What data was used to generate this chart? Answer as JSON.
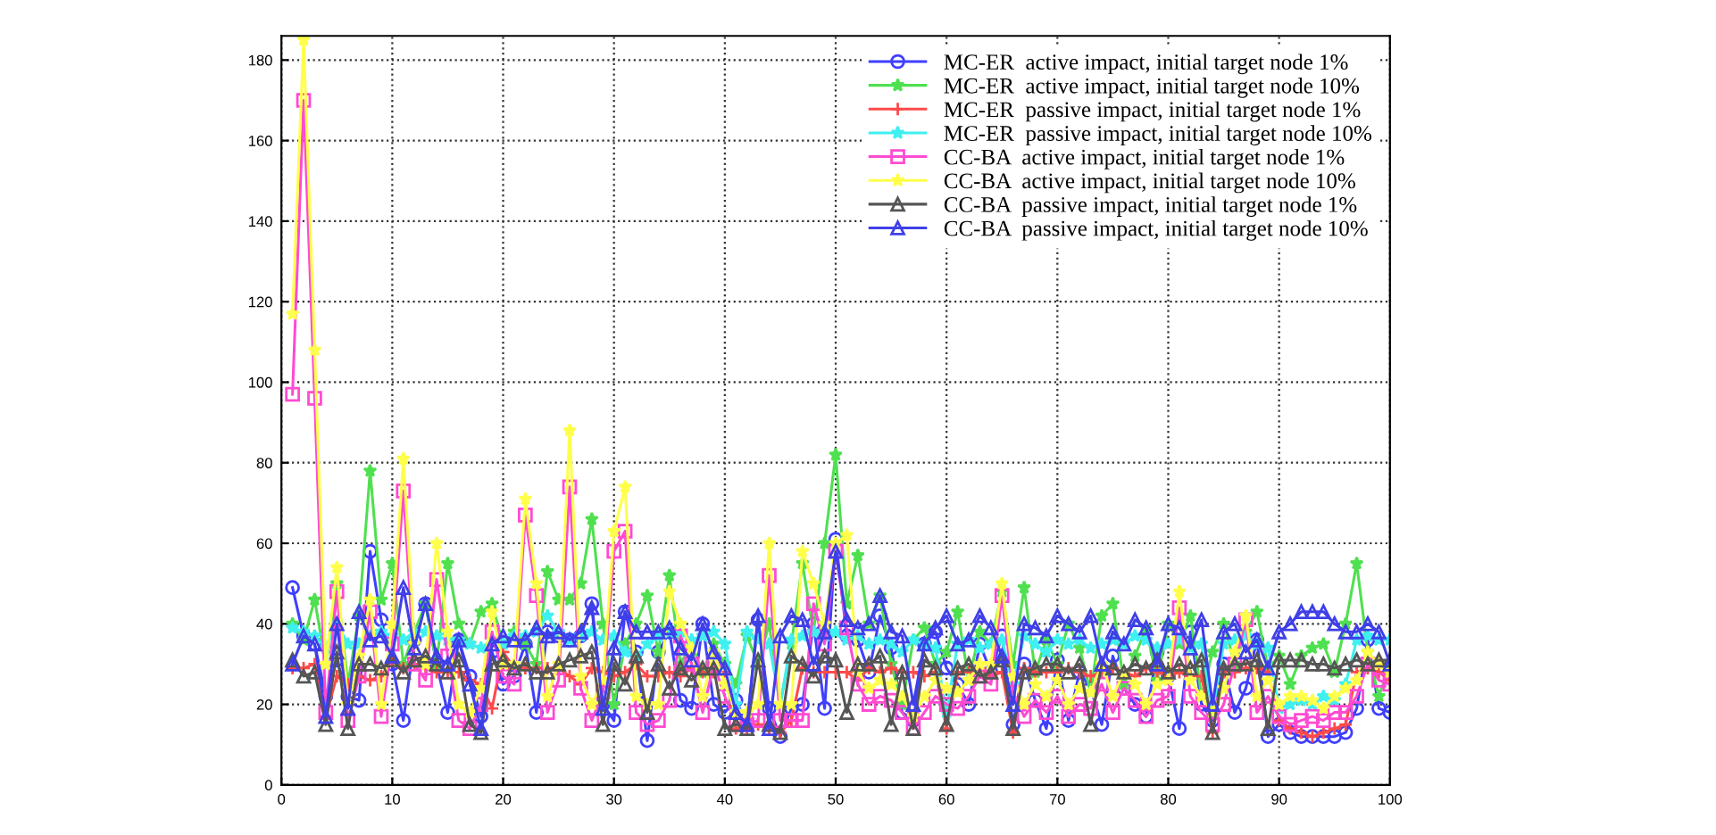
{
  "chart_data": {
    "type": "line",
    "x": [
      1,
      2,
      3,
      4,
      5,
      6,
      7,
      8,
      9,
      10,
      11,
      12,
      13,
      14,
      15,
      16,
      17,
      18,
      19,
      20,
      21,
      22,
      23,
      24,
      25,
      26,
      27,
      28,
      29,
      30,
      31,
      32,
      33,
      34,
      35,
      36,
      37,
      38,
      39,
      40,
      41,
      42,
      43,
      44,
      45,
      46,
      47,
      48,
      49,
      50,
      51,
      52,
      53,
      54,
      55,
      56,
      57,
      58,
      59,
      60,
      61,
      62,
      63,
      64,
      65,
      66,
      67,
      68,
      69,
      70,
      71,
      72,
      73,
      74,
      75,
      76,
      77,
      78,
      79,
      80,
      81,
      82,
      83,
      84,
      85,
      86,
      87,
      88,
      89,
      90,
      91,
      92,
      93,
      94,
      95,
      96,
      97,
      98,
      99,
      100
    ],
    "xlim": [
      0,
      100
    ],
    "xticks": [
      0,
      10,
      20,
      30,
      40,
      50,
      60,
      70,
      80,
      90,
      100
    ],
    "ylim": [
      0,
      186
    ],
    "yticks": [
      0,
      20,
      40,
      60,
      80,
      100,
      120,
      140,
      160,
      180
    ],
    "grid": true,
    "legend": "top right",
    "line_style": "solid",
    "series": [
      {
        "name": "MC-ER  active impact, initial target node 1%",
        "color": "#3f3fff",
        "marker": "circle",
        "values": [
          49,
          37,
          35,
          22,
          31,
          22,
          21,
          58,
          41,
          30,
          16,
          36,
          45,
          30,
          18,
          36,
          27,
          17,
          33,
          25,
          27,
          35,
          18,
          38,
          37,
          36,
          37,
          45,
          20,
          16,
          43,
          33,
          11,
          33,
          38,
          21,
          19,
          40,
          20,
          18,
          21,
          15,
          41,
          19,
          12,
          19,
          20,
          40,
          19,
          61,
          37,
          36,
          28,
          42,
          34,
          18,
          16,
          35,
          38,
          29,
          25,
          20,
          35,
          28,
          37,
          15,
          30,
          21,
          14,
          31,
          16,
          28,
          24,
          15,
          32,
          24,
          20,
          17,
          33,
          27,
          14,
          38,
          20,
          16,
          30,
          18,
          24,
          36,
          12,
          15,
          13,
          12,
          12,
          12,
          12,
          13,
          19,
          36,
          19,
          18
        ]
      },
      {
        "name": "MC-ER  active impact, initial target node 10%",
        "color": "#4fe04f",
        "marker": "star",
        "values": [
          40,
          36,
          46,
          30,
          50,
          25,
          42,
          78,
          46,
          55,
          30,
          38,
          45,
          30,
          55,
          40,
          35,
          43,
          45,
          35,
          38,
          35,
          30,
          53,
          46,
          46,
          50,
          66,
          40,
          20,
          35,
          40,
          47,
          33,
          52,
          30,
          35,
          28,
          35,
          30,
          25,
          37,
          30,
          40,
          20,
          35,
          55,
          38,
          60,
          82,
          45,
          57,
          40,
          47,
          30,
          20,
          36,
          39,
          30,
          33,
          43,
          26,
          38,
          35,
          48,
          30,
          49,
          28,
          36,
          30,
          40,
          34,
          23,
          42,
          45,
          25,
          32,
          39,
          26,
          40,
          35,
          42,
          22,
          33,
          40,
          30,
          38,
          43,
          29,
          32,
          25,
          32,
          34,
          35,
          28,
          40,
          55,
          33,
          22,
          30
        ]
      },
      {
        "name": "MC-ER  passive impact, initial target node 1%",
        "color": "#ff4a4a",
        "marker": "cross",
        "values": [
          29,
          29,
          30,
          17,
          27,
          25,
          27,
          26,
          27,
          31,
          29,
          30,
          29,
          28,
          28,
          28,
          26,
          25,
          19,
          33,
          29,
          29,
          29,
          29,
          29,
          27,
          25,
          29,
          28,
          27,
          28,
          30,
          27,
          27,
          28,
          27,
          29,
          28,
          28,
          28,
          14,
          14,
          15,
          14,
          13,
          16,
          29,
          28,
          28,
          28,
          28,
          26,
          29,
          28,
          29,
          28,
          28,
          27,
          28,
          14,
          28,
          28,
          29,
          27,
          28,
          13,
          29,
          28,
          28,
          28,
          29,
          28,
          27,
          28,
          29,
          28,
          27,
          29,
          28,
          27,
          28,
          27,
          27,
          13,
          28,
          28,
          29,
          29,
          28,
          16,
          14,
          13,
          12,
          13,
          14,
          15,
          28,
          29,
          28,
          26
        ]
      },
      {
        "name": "MC-ER  passive impact, initial target node 10%",
        "color": "#3ff0f0",
        "marker": "star",
        "values": [
          39,
          38,
          37,
          34,
          40,
          35,
          35,
          37,
          38,
          37,
          36,
          38,
          38,
          37,
          36,
          36,
          35,
          34,
          36,
          35,
          37,
          37,
          38,
          42,
          38,
          36,
          37,
          38,
          36,
          37,
          33,
          32,
          35,
          37,
          38,
          38,
          36,
          37,
          38,
          35,
          20,
          38,
          36,
          35,
          20,
          36,
          37,
          38,
          37,
          38,
          36,
          37,
          35,
          36,
          35,
          33,
          36,
          35,
          34,
          18,
          35,
          36,
          34,
          35,
          36,
          25,
          37,
          35,
          33,
          36,
          35,
          36,
          34,
          35,
          36,
          35,
          37,
          36,
          34,
          35,
          36,
          34,
          35,
          18,
          35,
          36,
          37,
          35,
          34,
          19,
          20,
          21,
          20,
          22,
          21,
          25,
          36,
          37,
          36,
          36
        ]
      },
      {
        "name": "CC-BA  active impact, initial target node 1%",
        "color": "#ff4ad2",
        "marker": "square",
        "values": [
          97,
          170,
          96,
          18,
          48,
          16,
          27,
          43,
          17,
          35,
          73,
          30,
          26,
          51,
          32,
          16,
          14,
          20,
          38,
          27,
          25,
          67,
          47,
          18,
          26,
          74,
          24,
          16,
          23,
          58,
          63,
          18,
          15,
          16,
          21,
          37,
          30,
          18,
          30,
          22,
          15,
          15,
          16,
          52,
          16,
          16,
          16,
          45,
          35,
          58,
          39,
          25,
          20,
          22,
          21,
          18,
          14,
          18,
          22,
          20,
          19,
          22,
          27,
          25,
          47,
          23,
          17,
          21,
          18,
          22,
          17,
          20,
          19,
          25,
          18,
          24,
          21,
          17,
          21,
          22,
          44,
          22,
          18,
          15,
          20,
          30,
          41,
          18,
          22,
          17,
          15,
          16,
          17,
          16,
          18,
          18,
          22,
          30,
          26,
          25
        ]
      },
      {
        "name": "CC-BA  active impact, initial target node 10%",
        "color": "#ffff4a",
        "marker": "star",
        "values": [
          117,
          185,
          108,
          30,
          54,
          20,
          32,
          46,
          20,
          40,
          81,
          35,
          30,
          60,
          38,
          20,
          18,
          24,
          43,
          30,
          30,
          71,
          50,
          22,
          30,
          88,
          27,
          20,
          26,
          63,
          74,
          22,
          20,
          20,
          48,
          40,
          34,
          22,
          33,
          25,
          18,
          18,
          20,
          60,
          20,
          20,
          58,
          50,
          40,
          60,
          62,
          28,
          24,
          26,
          25,
          22,
          17,
          22,
          26,
          24,
          23,
          26,
          30,
          30,
          50,
          27,
          20,
          25,
          22,
          26,
          20,
          24,
          23,
          30,
          22,
          28,
          25,
          20,
          25,
          26,
          48,
          26,
          22,
          18,
          24,
          33,
          42,
          22,
          26,
          20,
          22,
          22,
          21,
          19,
          22,
          24,
          26,
          33,
          30,
          28
        ]
      },
      {
        "name": "CC-BA  passive impact, initial target node 1%",
        "color": "#555555",
        "marker": "triangle",
        "values": [
          31,
          27,
          28,
          15,
          33,
          14,
          30,
          30,
          29,
          31,
          28,
          31,
          32,
          30,
          28,
          31,
          15,
          13,
          30,
          31,
          29,
          30,
          28,
          28,
          30,
          31,
          32,
          33,
          15,
          30,
          25,
          32,
          18,
          30,
          24,
          29,
          26,
          29,
          29,
          14,
          15,
          14,
          31,
          15,
          13,
          32,
          30,
          27,
          32,
          31,
          18,
          30,
          30,
          32,
          15,
          28,
          14,
          31,
          29,
          15,
          29,
          30,
          27,
          28,
          31,
          14,
          28,
          29,
          30,
          30,
          28,
          30,
          15,
          30,
          29,
          28,
          30,
          29,
          31,
          28,
          30,
          29,
          31,
          13,
          29,
          30,
          30,
          31,
          14,
          31,
          31,
          31,
          30,
          30,
          29,
          30,
          31,
          30,
          31,
          31
        ]
      },
      {
        "name": "CC-BA  passive impact, initial target node 10%",
        "color": "#3f3fe8",
        "marker": "triangle",
        "values": [
          30,
          37,
          35,
          17,
          40,
          19,
          43,
          36,
          37,
          32,
          49,
          34,
          45,
          32,
          30,
          36,
          25,
          14,
          35,
          37,
          36,
          36,
          39,
          37,
          38,
          36,
          38,
          44,
          19,
          34,
          43,
          38,
          38,
          38,
          39,
          34,
          31,
          40,
          33,
          29,
          18,
          15,
          42,
          14,
          37,
          42,
          41,
          30,
          38,
          58,
          41,
          39,
          40,
          47,
          38,
          37,
          20,
          35,
          39,
          42,
          35,
          36,
          42,
          39,
          32,
          20,
          40,
          39,
          37,
          42,
          40,
          38,
          42,
          30,
          38,
          35,
          41,
          39,
          30,
          40,
          39,
          34,
          41,
          20,
          38,
          40,
          33,
          36,
          29,
          38,
          40,
          43,
          43,
          43,
          40,
          38,
          38,
          40,
          38,
          30
        ]
      }
    ]
  }
}
